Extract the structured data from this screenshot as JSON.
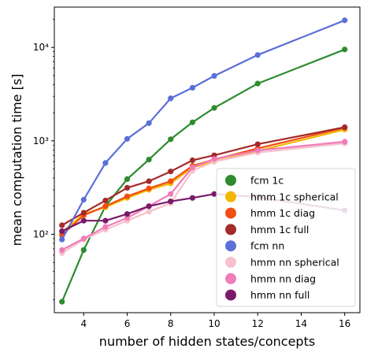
{
  "chart_data": {
    "type": "line",
    "xlabel": "number of hidden states/concepts",
    "ylabel": "mean computation time [s]",
    "yscale": "log",
    "xlim": [
      2.65,
      16.7
    ],
    "ylim": [
      14.5,
      27000
    ],
    "x_ticks": [
      4,
      6,
      8,
      10,
      12,
      14,
      16
    ],
    "x_tick_labels": [
      "4",
      "6",
      "8",
      "10",
      "12",
      "14",
      "16"
    ],
    "y_ticks": [
      100,
      1000,
      10000
    ],
    "y_tick_labels": [
      "10²",
      "10³",
      "10⁴"
    ],
    "grid": false,
    "legend": "lower-right",
    "x": [
      3,
      4,
      5,
      6,
      7,
      8,
      9,
      10,
      12,
      16
    ],
    "series": [
      {
        "name": "fcm 1c",
        "color": "#2e8b2e",
        "values": [
          19,
          68,
          200,
          390,
          630,
          1040,
          1580,
          2250,
          4100,
          9500
        ]
      },
      {
        "name": "hmm 1c spherical",
        "color": "#f2b800",
        "values": [
          105,
          165,
          195,
          245,
          300,
          350,
          520,
          600,
          780,
          1320
        ]
      },
      {
        "name": "hmm 1c diag",
        "color": "#f04e12",
        "values": [
          98,
          160,
          200,
          255,
          310,
          370,
          540,
          630,
          830,
          1380
        ]
      },
      {
        "name": "hmm 1c full",
        "color": "#a52a2a",
        "values": [
          125,
          170,
          230,
          315,
          370,
          470,
          620,
          700,
          920,
          1400
        ]
      },
      {
        "name": "fcm nn",
        "color": "#5a6fd8",
        "values": [
          88,
          235,
          580,
          1050,
          1550,
          2850,
          3700,
          4950,
          8300,
          19500
        ]
      },
      {
        "name": "hmm nn spherical",
        "color": "#f6c1cc",
        "values": [
          63,
          88,
          112,
          140,
          175,
          215,
          480,
          600,
          750,
          940
        ]
      },
      {
        "name": "hmm nn diag",
        "color": "#f07cb8",
        "values": [
          68,
          90,
          120,
          150,
          200,
          270,
          520,
          640,
          790,
          980
        ]
      },
      {
        "name": "hmm nn full",
        "color": "#7a1a6a",
        "values": [
          108,
          140,
          140,
          165,
          200,
          225,
          245,
          270,
          250,
          180
        ]
      }
    ]
  }
}
